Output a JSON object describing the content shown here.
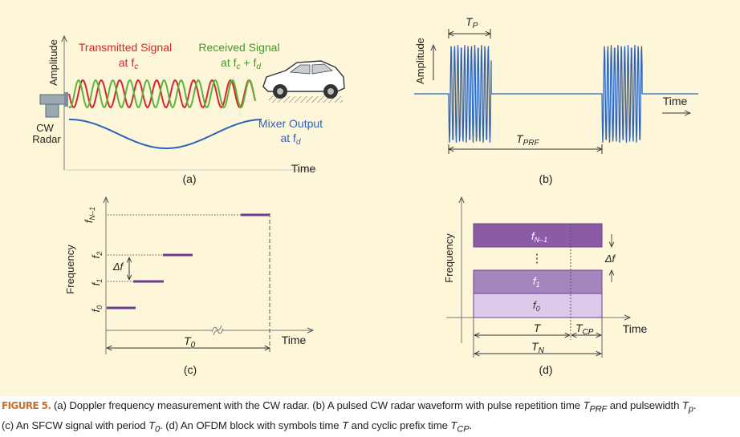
{
  "panel_a": {
    "y_axis_label": "Amplitude",
    "transmitted_label": "Transmitted Signal",
    "transmitted_freq": "at f",
    "transmitted_freq_sub": "c",
    "received_label": "Received Signal",
    "received_freq": "at f",
    "received_freq_sub1": "c",
    "received_freq_plus": " + f",
    "received_freq_sub2": "d",
    "radar_label_1": "CW",
    "radar_label_2": "Radar",
    "mixer_label": "Mixer Output",
    "mixer_freq": "at f",
    "mixer_freq_sub": "d",
    "x_axis_label": "Time",
    "panel_label": "(a)",
    "colors": {
      "transmitted": "#d9232e",
      "received": "#5bb53a",
      "mixer": "#2e63b8"
    }
  },
  "panel_b": {
    "y_axis_label": "Amplitude",
    "tp_label": "T",
    "tp_sub": "P",
    "tprf_label": "T",
    "tprf_sub": "PRF",
    "x_axis_label": "Time",
    "panel_label": "(b)",
    "colors": {
      "waveform": "#2e63b8"
    }
  },
  "panel_c": {
    "y_axis_label": "Frequency",
    "levels": [
      {
        "main": "f",
        "sub": "0"
      },
      {
        "main": "f",
        "sub": "1"
      },
      {
        "main": "f",
        "sub": "2"
      },
      {
        "main": "f",
        "sub": "N–1"
      }
    ],
    "delta_label": "Δf",
    "period_label": "T",
    "period_sub": "0",
    "x_axis_label": "Time",
    "panel_label": "(c)",
    "colors": {
      "steps": "#6a3d8f"
    }
  },
  "panel_d": {
    "y_axis_label": "Frequency",
    "blocks": [
      {
        "main": "f",
        "sub": "N–1"
      },
      {
        "main": "f",
        "sub": "1"
      },
      {
        "main": "f",
        "sub": "0"
      }
    ],
    "dots": "⋮",
    "delta_label": "Δf",
    "t_label": "T",
    "tcp_label": "T",
    "tcp_sub": "CP",
    "tn_label": "T",
    "tn_sub": "N",
    "x_axis_label": "Time",
    "panel_label": "(d)",
    "colors": {
      "dark": "#8c5ba6",
      "mid": "#a585bd",
      "light": "#dccaea"
    }
  },
  "caption": {
    "label": "FIGURE 5.",
    "p1": " (a) Doppler frequency measurement with the CW radar. (b) A pulsed CW radar waveform with pulse repetition time ",
    "tprf_main": "T",
    "tprf_sub": "PRF",
    "p2": " and pulsewidth ",
    "tp_main": "T",
    "tp_sub": "p",
    "p3": ".",
    "p4": "(c) An SFCW signal with period ",
    "t0_main": "T",
    "t0_sub": "0",
    "p5": ". (d) An OFDM block with symbols time ",
    "t_main": "T",
    "p6": " and cyclic prefix time ",
    "tcp_main": "T",
    "tcp_sub": "CP",
    "p7": "."
  }
}
